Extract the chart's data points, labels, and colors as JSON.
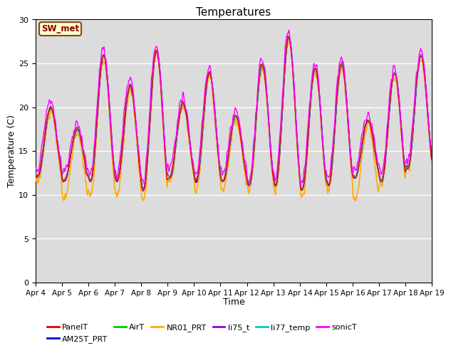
{
  "title": "Temperatures",
  "xlabel": "Time",
  "ylabel": "Temperature (C)",
  "ylim": [
    0,
    30
  ],
  "background_color": "#dcdcdc",
  "figure_color": "#ffffff",
  "annotation_text": "SW_met",
  "annotation_bbox_fc": "#ffffcc",
  "annotation_bbox_ec": "#8b4513",
  "annotation_color": "#8b0000",
  "series": [
    {
      "label": "PanelT",
      "color": "#ee0000",
      "lw": 1.0,
      "zorder": 5
    },
    {
      "label": "AM25T_PRT",
      "color": "#0000cc",
      "lw": 1.0,
      "zorder": 4
    },
    {
      "label": "AirT",
      "color": "#00cc00",
      "lw": 1.0,
      "zorder": 4
    },
    {
      "label": "NR01_PRT",
      "color": "#ffaa00",
      "lw": 1.2,
      "zorder": 3
    },
    {
      "label": "li75_t",
      "color": "#9900cc",
      "lw": 1.0,
      "zorder": 4
    },
    {
      "label": "li77_temp",
      "color": "#00cccc",
      "lw": 1.0,
      "zorder": 4
    },
    {
      "label": "sonicT",
      "color": "#ff00ff",
      "lw": 1.0,
      "zorder": 6
    }
  ],
  "xtick_labels": [
    "Apr 4",
    "Apr 5",
    "Apr 6",
    "Apr 7",
    "Apr 8",
    "Apr 9",
    "Apr 10",
    "Apr 11",
    "Apr 12",
    "Apr 13",
    "Apr 14",
    "Apr 15",
    "Apr 16",
    "Apr 17",
    "Apr 18",
    "Apr 19"
  ],
  "ytick_vals": [
    0,
    5,
    10,
    15,
    20,
    25,
    30
  ],
  "day_peaks": [
    20.0,
    17.5,
    26.0,
    22.5,
    26.5,
    20.5,
    24.0,
    19.0,
    25.0,
    28.0,
    24.5,
    25.0,
    18.5,
    24.0,
    26.0
  ],
  "day_mins": [
    12.0,
    11.5,
    11.5,
    11.5,
    10.5,
    12.0,
    11.5,
    11.5,
    11.0,
    11.0,
    10.5,
    11.0,
    12.0,
    11.5,
    13.0
  ],
  "nr01_mins": [
    11.5,
    9.5,
    10.0,
    10.0,
    9.5,
    11.5,
    10.5,
    10.5,
    10.5,
    10.5,
    9.7,
    10.5,
    9.5,
    11.0,
    13.0
  ],
  "sonic_extra_amp": 1.5,
  "sonic_noise": 0.6
}
